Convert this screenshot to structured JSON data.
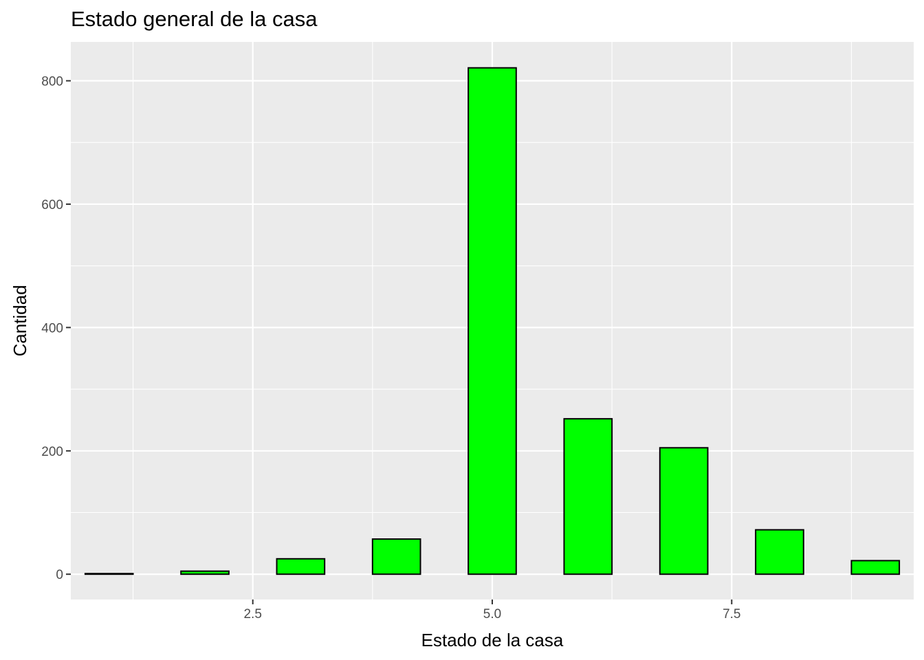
{
  "chart_data": {
    "type": "bar",
    "title": "Estado general de la casa",
    "xlabel": "Estado de la casa",
    "ylabel": "Cantidad",
    "x": [
      1,
      2,
      3,
      4,
      5,
      6,
      7,
      8,
      9
    ],
    "values": [
      1,
      5,
      25,
      57,
      821,
      252,
      205,
      72,
      22
    ],
    "bar_width": 0.5,
    "xlim": [
      0.6,
      9.4
    ],
    "ylim": [
      -41,
      863
    ],
    "xticks": [
      2.5,
      5.0,
      7.5
    ],
    "xtick_labels": [
      "2.5",
      "5.0",
      "7.5"
    ],
    "yticks": [
      0,
      200,
      400,
      600,
      800
    ],
    "ytick_labels": [
      "0",
      "200",
      "400",
      "600",
      "800"
    ],
    "grid": true,
    "legend": false,
    "colors": {
      "bar_fill": "#00ff00",
      "bar_outline": "#000000",
      "panel_background": "#ebebeb",
      "grid": "#ffffff"
    }
  }
}
